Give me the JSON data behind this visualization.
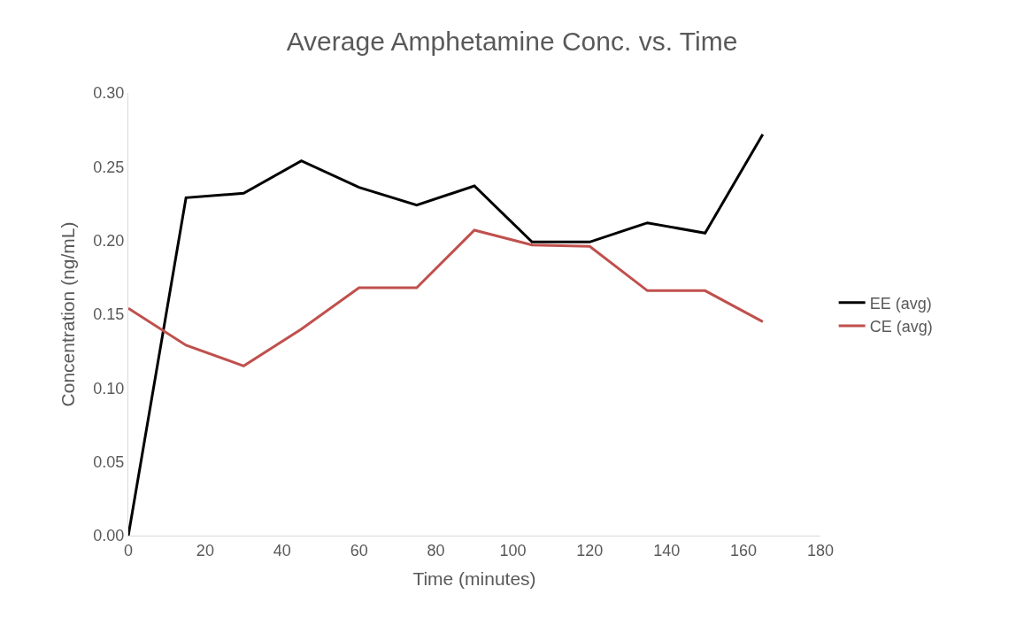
{
  "chart_data": {
    "type": "line",
    "title": "Average Amphetamine Conc. vs. Time",
    "xlabel": "Time (minutes)",
    "ylabel": "Concentration (ng/mL)",
    "x": [
      0,
      15,
      30,
      45,
      60,
      75,
      90,
      105,
      120,
      135,
      150,
      165
    ],
    "series": [
      {
        "name": "EE (avg)",
        "color": "#000000",
        "values": [
          0.0,
          0.229,
          0.232,
          0.254,
          0.236,
          0.224,
          0.237,
          0.199,
          0.199,
          0.212,
          0.205,
          0.272
        ]
      },
      {
        "name": "CE (avg)",
        "color": "#c0504d",
        "values": [
          0.154,
          0.129,
          0.115,
          0.14,
          0.168,
          0.168,
          0.207,
          0.197,
          0.196,
          0.166,
          0.166,
          0.145
        ]
      }
    ],
    "xlim": [
      0,
      180
    ],
    "xticks": [
      0,
      20,
      40,
      60,
      80,
      100,
      120,
      140,
      160,
      180
    ],
    "ylim": [
      0,
      0.3
    ],
    "yticks": [
      {
        "value": 0,
        "label": "0.00"
      },
      {
        "value": 0.05,
        "label": "0.05"
      },
      {
        "value": 0.1,
        "label": "0.10"
      },
      {
        "value": 0.15,
        "label": "0.15"
      },
      {
        "value": 0.2,
        "label": "0.20"
      },
      {
        "value": 0.25,
        "label": "0.25"
      },
      {
        "value": 0.3,
        "label": "0.30"
      }
    ],
    "legend": "right",
    "marker": "none",
    "line_style": "solid"
  }
}
